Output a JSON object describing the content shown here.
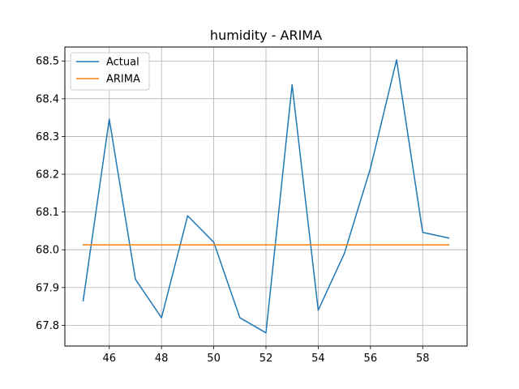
{
  "chart_data": {
    "type": "line",
    "title": "humidity - ARIMA",
    "xlabel": "",
    "ylabel": "",
    "xlim": [
      44.3,
      59.7
    ],
    "ylim": [
      67.745,
      68.537
    ],
    "xticks": [
      46,
      48,
      50,
      52,
      54,
      56,
      58
    ],
    "yticks": [
      67.8,
      67.9,
      68.0,
      68.1,
      68.2,
      68.3,
      68.4,
      68.5
    ],
    "xtick_labels": [
      "46",
      "48",
      "50",
      "52",
      "54",
      "56",
      "58"
    ],
    "ytick_labels": [
      "67.8",
      "67.9",
      "68.0",
      "68.1",
      "68.2",
      "68.3",
      "68.4",
      "68.5"
    ],
    "grid": true,
    "legend_position": "top-left",
    "series": [
      {
        "name": "Actual",
        "color": "#1f77b4",
        "x": [
          45,
          46,
          47,
          48,
          49,
          50,
          51,
          52,
          53,
          54,
          55,
          56,
          57,
          58,
          59
        ],
        "y": [
          67.865,
          68.346,
          67.922,
          67.82,
          68.09,
          68.02,
          67.82,
          67.78,
          68.437,
          67.84,
          67.99,
          68.216,
          68.503,
          68.046,
          68.031
        ]
      },
      {
        "name": "ARIMA",
        "color": "#ff7f0e",
        "x": [
          45,
          46,
          47,
          48,
          49,
          50,
          51,
          52,
          53,
          54,
          55,
          56,
          57,
          58,
          59
        ],
        "y": [
          68.013,
          68.013,
          68.013,
          68.013,
          68.013,
          68.013,
          68.013,
          68.013,
          68.013,
          68.013,
          68.013,
          68.013,
          68.013,
          68.013,
          68.013
        ]
      }
    ]
  }
}
